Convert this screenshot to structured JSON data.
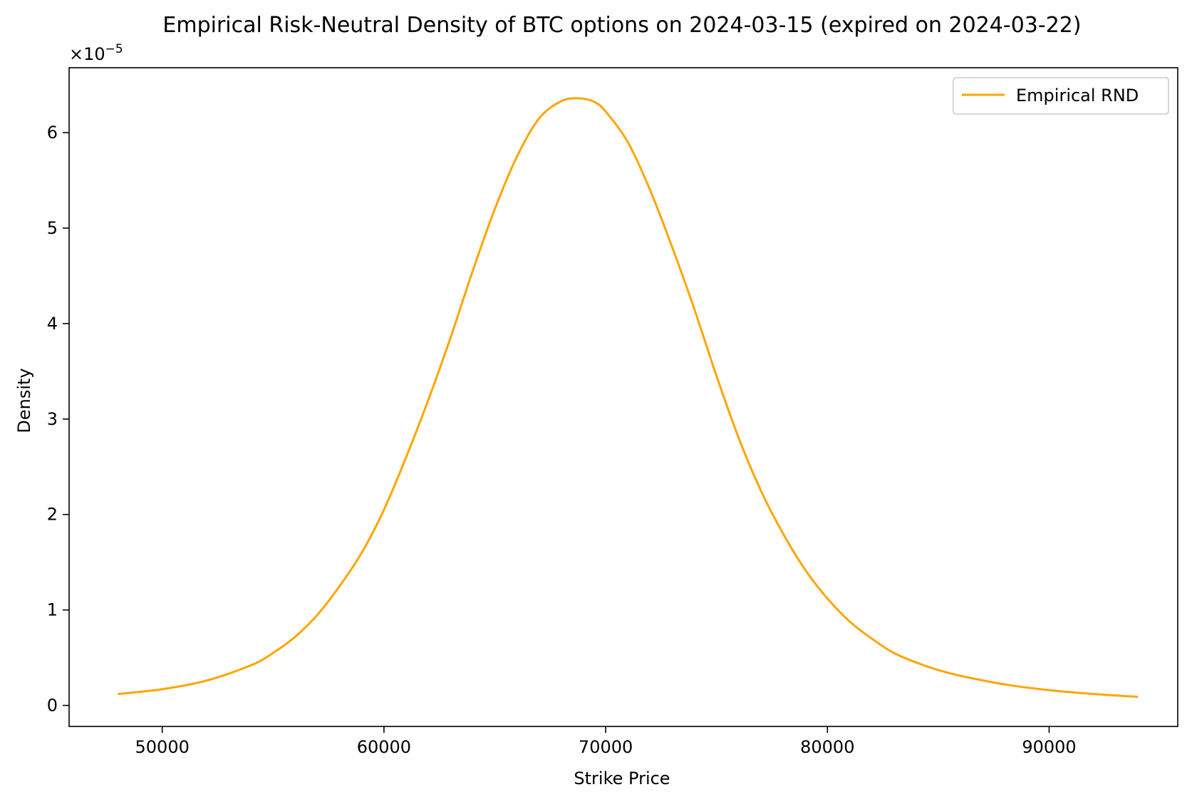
{
  "chart_data": {
    "type": "line",
    "title": "Empirical Risk-Neutral Density of BTC options on 2024-03-15 (expired on 2024-03-22)",
    "xlabel": "Strike Price",
    "ylabel": "Density",
    "y_scale_label": "×10",
    "y_scale_exponent": "−5",
    "xlim": [
      45800,
      95800
    ],
    "ylim": [
      -0.22,
      6.68
    ],
    "y_multiplier": 1e-05,
    "xticks": [
      50000,
      60000,
      70000,
      80000,
      90000
    ],
    "xtick_labels": [
      "50000",
      "60000",
      "70000",
      "80000",
      "90000"
    ],
    "yticks": [
      0,
      1,
      2,
      3,
      4,
      5,
      6
    ],
    "ytick_labels": [
      "0",
      "1",
      "2",
      "3",
      "4",
      "5",
      "6"
    ],
    "grid": false,
    "legend_position": "top-right",
    "series": [
      {
        "name": "Empirical RND",
        "color": "#FFA500",
        "x": [
          48000,
          50000,
          52000,
          54000,
          55000,
          56000,
          57000,
          58000,
          59000,
          60000,
          61000,
          62000,
          63000,
          64000,
          65000,
          66000,
          67000,
          68000,
          68800,
          69500,
          70000,
          71000,
          72000,
          73000,
          74000,
          75000,
          76000,
          77000,
          78000,
          79000,
          80000,
          81000,
          82000,
          83000,
          84000,
          85000,
          86000,
          88000,
          90000,
          92000,
          94000
        ],
        "y": [
          0.12,
          0.17,
          0.26,
          0.42,
          0.55,
          0.72,
          0.95,
          1.25,
          1.6,
          2.05,
          2.6,
          3.2,
          3.85,
          4.55,
          5.2,
          5.75,
          6.15,
          6.33,
          6.36,
          6.32,
          6.22,
          5.9,
          5.4,
          4.8,
          4.15,
          3.45,
          2.8,
          2.25,
          1.8,
          1.42,
          1.12,
          0.88,
          0.7,
          0.55,
          0.45,
          0.37,
          0.31,
          0.22,
          0.16,
          0.12,
          0.09
        ]
      }
    ]
  }
}
